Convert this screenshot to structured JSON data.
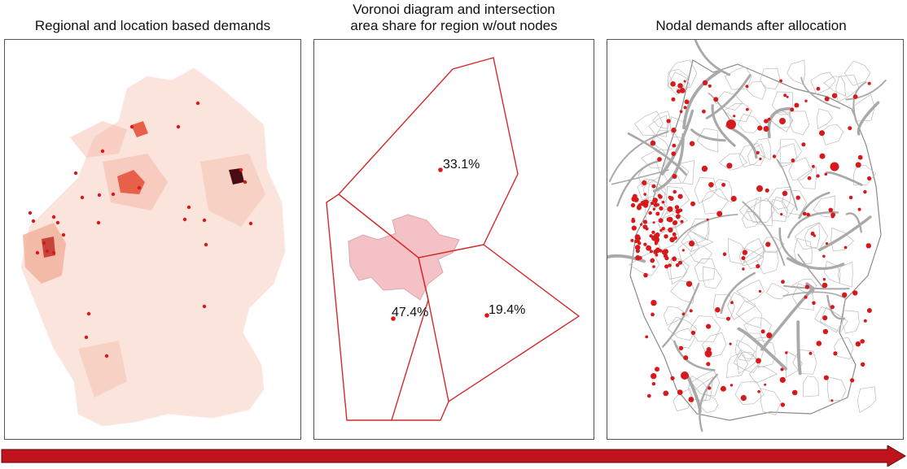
{
  "panels": [
    {
      "title": "Regional and location based demands"
    },
    {
      "title": "Voronoi diagram and intersection\narea share for region w/out nodes",
      "shares": [
        "33.1%",
        "47.4%",
        "19.4%"
      ]
    },
    {
      "title": "Nodal demands after allocation"
    }
  ],
  "colors": {
    "region_light": "#fbe4dc",
    "region_medium": "#f3b39f",
    "region_dark": "#4a0b12",
    "demand_point": "#d7191c",
    "voronoi_edge": "#d42a2a",
    "highlight_region": "#f4c2c6",
    "grid_line": "#a9a9a9",
    "border_line": "#8a8a8a",
    "arrow": "#c0141c"
  }
}
